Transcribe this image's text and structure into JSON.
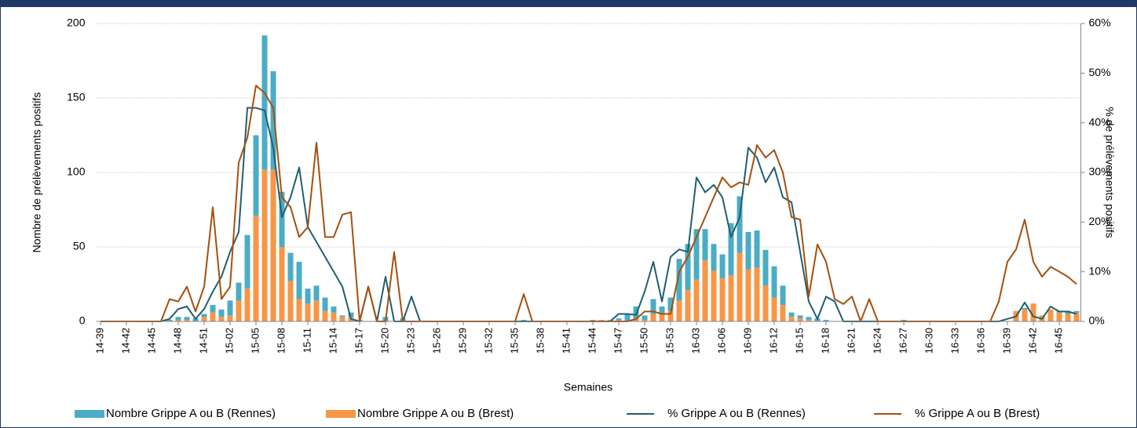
{
  "chart_data": {
    "type": "bar",
    "stacked": true,
    "xlabel": "Semaines",
    "ylabel": "Nombre de prélèvements positifs",
    "y2label": "% de prélèvements positifs",
    "categories": [
      "14-39",
      null,
      null,
      "14-42",
      null,
      null,
      "14-45",
      null,
      null,
      "14-48",
      null,
      null,
      "14-51",
      null,
      null,
      "15-02",
      null,
      null,
      "15-05",
      null,
      null,
      "15-08",
      null,
      null,
      "15-11",
      null,
      null,
      "15-14",
      null,
      null,
      "15-17",
      null,
      null,
      "15-20",
      null,
      null,
      "15-23",
      null,
      null,
      "15-26",
      null,
      null,
      "15-29",
      null,
      null,
      "15-32",
      null,
      null,
      "15-35",
      null,
      null,
      "15-38",
      null,
      null,
      "15-41",
      null,
      null,
      "15-44",
      null,
      null,
      "15-47",
      null,
      null,
      "15-50",
      null,
      null,
      "15-53",
      null,
      null,
      "16-03",
      null,
      null,
      "16-06",
      null,
      null,
      "16-09",
      null,
      null,
      "16-12",
      null,
      null,
      "16-15",
      null,
      null,
      "16-18",
      null,
      null,
      "16-21",
      null,
      null,
      "16-24",
      null,
      null,
      "16-27",
      null,
      null,
      "16-30",
      null,
      null,
      "16-33",
      null,
      null,
      "16-36",
      null,
      null,
      "16-39",
      null,
      null,
      "16-42",
      null,
      null,
      "16-45",
      null,
      null
    ],
    "series": [
      {
        "name": "Nombre Grippe A ou B (Rennes)",
        "type": "bar",
        "color": "#4bacc6",
        "values": [
          0,
          0,
          0,
          0,
          0,
          0,
          0,
          0,
          1,
          2,
          2,
          2,
          2,
          5,
          5,
          10,
          12,
          36,
          54,
          90,
          66,
          37,
          19,
          25,
          10,
          10,
          9,
          4,
          1,
          3,
          1,
          0,
          0,
          3,
          0,
          2,
          0,
          0,
          0,
          0,
          0,
          0,
          0,
          0,
          0,
          0,
          0,
          0,
          0,
          1,
          0,
          0,
          0,
          0,
          0,
          0,
          0,
          1,
          0,
          1,
          1,
          5,
          8,
          3,
          10,
          5,
          9,
          28,
          31,
          34,
          21,
          18,
          16,
          35,
          38,
          25,
          25,
          24,
          21,
          13,
          3,
          2,
          2,
          2,
          1,
          0,
          0,
          0,
          0,
          0,
          0,
          0,
          0,
          1,
          0,
          0,
          0,
          0,
          0,
          0,
          0,
          0,
          0,
          0,
          0,
          0,
          0,
          1,
          0,
          0,
          0,
          1,
          2,
          1
        ]
      },
      {
        "name": "Nombre Grippe A ou B (Brest)",
        "type": "bar",
        "color": "#f79646",
        "values": [
          0,
          0,
          0,
          0,
          0,
          0,
          0,
          0,
          0,
          1,
          1,
          0,
          3,
          6,
          3,
          4,
          14,
          22,
          71,
          102,
          102,
          50,
          27,
          15,
          12,
          14,
          7,
          6,
          3,
          3,
          0,
          0,
          0,
          0,
          0,
          0,
          0,
          0,
          0,
          0,
          0,
          0,
          0,
          0,
          0,
          0,
          0,
          0,
          0,
          0,
          0,
          0,
          0,
          0,
          0,
          0,
          0,
          0,
          1,
          0,
          1,
          0,
          2,
          1,
          5,
          5,
          7,
          14,
          21,
          28,
          41,
          34,
          29,
          31,
          46,
          35,
          36,
          24,
          16,
          11,
          3,
          2,
          1,
          0,
          0,
          0,
          0,
          0,
          0,
          0,
          0,
          0,
          0,
          0,
          0,
          0,
          0,
          0,
          0,
          0,
          0,
          0,
          0,
          0,
          0,
          0,
          7,
          8,
          12,
          4,
          8,
          6,
          5,
          6
        ]
      },
      {
        "name": "% Grippe A ou B (Rennes)",
        "type": "line",
        "axis": "y2",
        "color": "#215f6e",
        "values": [
          0,
          0,
          0,
          0,
          0,
          0,
          0,
          0,
          0.5,
          2.5,
          3,
          0.5,
          2.5,
          6,
          9,
          14,
          18,
          43,
          43,
          42.5,
          35,
          21,
          25,
          31,
          19,
          16,
          13,
          10,
          7,
          0.5,
          0,
          7,
          0,
          9,
          0,
          0,
          5,
          0,
          0,
          0,
          0,
          0,
          0,
          0,
          0,
          0,
          0,
          0,
          0,
          0,
          0,
          0,
          0,
          0,
          0,
          0,
          0,
          0,
          0,
          0,
          1.5,
          1.5,
          1.3,
          6,
          12,
          4,
          13,
          14.5,
          14,
          29,
          26,
          27.5,
          25,
          17,
          21,
          35,
          33,
          28,
          31,
          25,
          24,
          14,
          4,
          0.5,
          5,
          4,
          0,
          0,
          0,
          0,
          0,
          0,
          0,
          0,
          0,
          0,
          0,
          0,
          0,
          0,
          0,
          0,
          0,
          0,
          0,
          0.5,
          1,
          3.8,
          1,
          0.5,
          3,
          2,
          2,
          1.5
        ]
      },
      {
        "name": "% Grippe A ou B (Brest)",
        "type": "line",
        "axis": "y2",
        "color": "#a5500f",
        "values": [
          0,
          0,
          0,
          0,
          0,
          0,
          0,
          0,
          4.5,
          4,
          7,
          2,
          7,
          23,
          4.5,
          7,
          32,
          37,
          47.5,
          46,
          43,
          25,
          23,
          17,
          19,
          36,
          17,
          17,
          21.5,
          22,
          0,
          7,
          0,
          0,
          14,
          0,
          0,
          0,
          0,
          0,
          0,
          0,
          0,
          0,
          0,
          0,
          0,
          0,
          0,
          5.5,
          0,
          0,
          0,
          0,
          0,
          0,
          0,
          0,
          0,
          0,
          0,
          0,
          0.5,
          2,
          2,
          1.5,
          1.5,
          10,
          13,
          17,
          21,
          25,
          29,
          27,
          28,
          27.5,
          35.5,
          33,
          34.5,
          30,
          21,
          20.5,
          5,
          15.5,
          12,
          4.5,
          3.5,
          5,
          0,
          4.5,
          0,
          0,
          0,
          0,
          0,
          0,
          0,
          0,
          0,
          0,
          0,
          0,
          0,
          0,
          4,
          12,
          14.5,
          20.5,
          12,
          9,
          11,
          10,
          9,
          7.5
        ]
      }
    ],
    "ylim": [
      0,
      200
    ],
    "yticks": [
      0,
      50,
      100,
      150,
      200
    ],
    "y2lim": [
      0,
      60
    ],
    "y2ticks": [
      {
        "value": 0,
        "label": "0%"
      },
      {
        "value": 10,
        "label": "10%"
      },
      {
        "value": 20,
        "label": "20%"
      },
      {
        "value": 30,
        "label": "30%"
      },
      {
        "value": 40,
        "label": "40%"
      },
      {
        "value": 50,
        "label": "50%"
      },
      {
        "value": 60,
        "label": "60%"
      }
    ],
    "grid": true,
    "legend": "bottom"
  }
}
